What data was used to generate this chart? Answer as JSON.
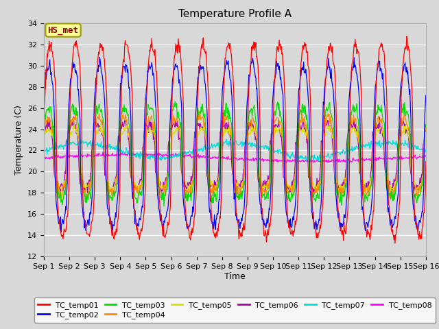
{
  "title": "Temperature Profile A",
  "xlabel": "Time",
  "ylabel": "Temperature (C)",
  "ylim": [
    12,
    34
  ],
  "yticks": [
    12,
    14,
    16,
    18,
    20,
    22,
    24,
    26,
    28,
    30,
    32,
    34
  ],
  "xlim_days": 15,
  "x_tick_labels": [
    "Sep 1",
    "Sep 2",
    "Sep 3",
    "Sep 4",
    "Sep 5",
    "Sep 6",
    "Sep 7",
    "Sep 8",
    "Sep 9",
    "Sep 10",
    "Sep 11",
    "Sep 12",
    "Sep 13",
    "Sep 14",
    "Sep 15",
    "Sep 16"
  ],
  "series_colors": {
    "TC_temp01": "#ff0000",
    "TC_temp02": "#0000ff",
    "TC_temp03": "#00dd00",
    "TC_temp04": "#ff8800",
    "TC_temp05": "#dddd00",
    "TC_temp06": "#aa00aa",
    "TC_temp07": "#00dddd",
    "TC_temp08": "#ff00ff"
  },
  "annotation_text": "HS_met",
  "annotation_box_color": "#ffff99",
  "annotation_text_color": "#880000",
  "annotation_border_color": "#999900",
  "bg_color": "#d8d8d8",
  "plot_bg_color": "#d8d8d8",
  "grid_color": "#ffffff",
  "title_fontsize": 11,
  "axis_fontsize": 9,
  "tick_fontsize": 8,
  "legend_fontsize": 8
}
